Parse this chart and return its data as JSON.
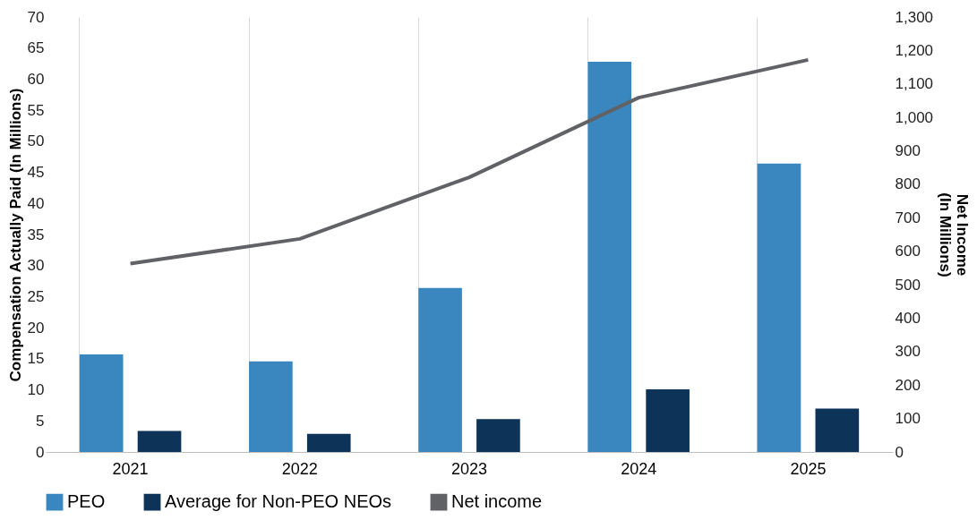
{
  "chart_data": {
    "type": "bar",
    "categories": [
      "2021",
      "2022",
      "2023",
      "2024",
      "2025"
    ],
    "ylabel": "Compensation Actually Paid (In Millions)",
    "y2label": "Net Income\n(In Millions)",
    "ylim": [
      0,
      70
    ],
    "yticks": [
      0,
      5,
      10,
      15,
      20,
      25,
      30,
      35,
      40,
      45,
      50,
      55,
      60,
      65,
      70
    ],
    "y2lim": [
      0,
      1300
    ],
    "y2ticks": [
      0,
      100,
      200,
      300,
      400,
      500,
      600,
      700,
      800,
      900,
      {
        "value": 1000,
        "label": "1,000"
      },
      {
        "value": 1100,
        "label": "1,100"
      },
      {
        "value": 1200,
        "label": "1,200"
      },
      {
        "value": 1300,
        "label": "1,300"
      }
    ],
    "grid": "x",
    "legend": "bottom",
    "series": [
      {
        "name": "PEO",
        "color": "#3a87c0",
        "values": [
          15.7,
          14.6,
          26.4,
          62.8,
          46.4
        ]
      },
      {
        "name": "Average for Non-PEO NEOs",
        "color": "#0d3358",
        "values": [
          3.4,
          2.9,
          5.3,
          10.1,
          7.0
        ]
      },
      {
        "name": "Net income",
        "type": "line",
        "axis": "y2",
        "color": "#606266",
        "values": [
          563,
          637,
          821,
          1059,
          1172
        ]
      }
    ]
  }
}
